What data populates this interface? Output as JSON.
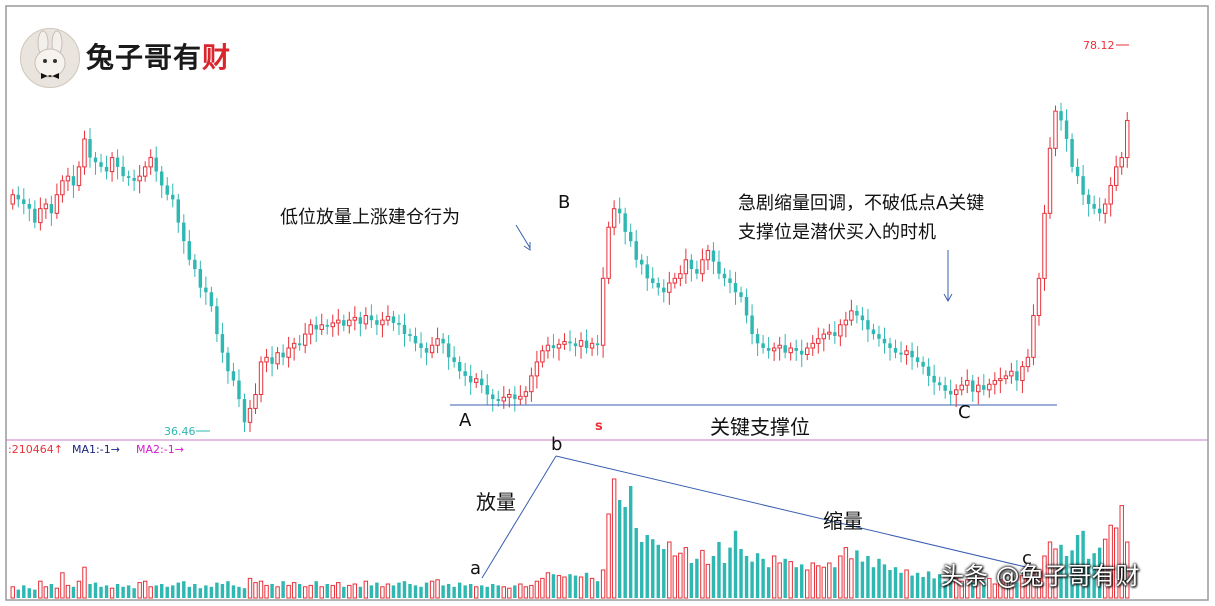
{
  "logo": {
    "text_black": "兔子哥有",
    "text_red": "财"
  },
  "watermark": "头条 @兔子哥有财",
  "colors": {
    "up": "#e8313a",
    "down": "#2fb7b2",
    "line": "#3a5fb0",
    "divider": "#c77fc3",
    "vol_ma1": "#1a237e",
    "vol_ma2": "#d81bd0"
  },
  "chart_data": [
    {
      "type": "candlestick",
      "panel": "price",
      "high_label": "78.12",
      "low_label": "36.46",
      "support_line_label": "关键支撑位",
      "annotations": {
        "left_note": "低位放量上涨建仓行为",
        "right_note_line1": "急剧缩量回调，不破低点A关键",
        "right_note_line2": "支撑位是潜伏买入的时机",
        "points": {
          "A": "A",
          "B": "B",
          "C": "C",
          "s": "s"
        }
      },
      "closes": [
        62,
        61.5,
        61,
        60.5,
        59,
        60.5,
        61,
        60,
        62,
        63.5,
        64,
        63,
        65,
        68,
        66,
        65.5,
        65,
        64.5,
        66,
        65,
        64,
        63.8,
        63.5,
        64,
        65,
        66,
        64.5,
        63,
        62,
        61.5,
        59,
        57,
        55,
        54,
        52,
        51.5,
        50,
        47,
        45,
        43,
        42,
        40,
        37.5,
        39,
        40.5,
        44,
        44.5,
        43.8,
        45,
        44.5,
        45.5,
        46,
        45.8,
        47,
        48,
        47.5,
        48,
        47.8,
        48.2,
        48.5,
        47.9,
        48.5,
        48.8,
        48.1,
        49,
        48.5,
        48,
        48.5,
        48.9,
        48.2,
        48,
        47,
        46.8,
        46,
        45.5,
        45,
        45.8,
        46.5,
        46,
        44.5,
        44,
        43,
        42.5,
        41.8,
        42.2,
        41.5,
        40.5,
        40,
        39.8,
        40.2,
        40.5,
        40,
        40.3,
        40.8,
        42.5,
        44,
        45.2,
        45.8,
        45.5,
        45.9,
        46.2,
        46,
        45.7,
        46.3,
        45.5,
        46,
        45.8,
        53,
        58.5,
        60.5,
        60,
        58,
        57,
        55,
        54.5,
        53,
        52.5,
        52,
        51.5,
        52.5,
        53,
        53.5,
        55,
        54,
        53.5,
        55,
        56,
        54.8,
        53.5,
        53,
        52.5,
        51.5,
        51,
        49,
        47,
        46,
        45.5,
        45.2,
        45.5,
        45.8,
        45,
        45.5,
        45.2,
        44.8,
        45.5,
        46,
        46.5,
        47,
        47.2,
        46.8,
        48,
        48.5,
        49.5,
        49,
        48.5,
        47.5,
        47,
        46.5,
        46,
        45.5,
        45,
        44.8,
        45.2,
        44.5,
        44,
        43.5,
        42.5,
        41.8,
        41.5,
        40.9,
        40.5,
        41,
        41.5,
        42,
        40.8,
        41.5,
        41,
        41.6,
        42,
        42.2,
        42.5,
        43,
        42,
        43.5,
        44.5,
        49,
        53,
        60,
        67,
        71,
        70,
        68,
        65,
        64,
        62,
        61,
        60.5,
        60,
        61,
        63,
        65,
        66,
        70
      ],
      "opens": [
        61,
        62,
        61.5,
        61,
        60.5,
        59,
        60.5,
        61,
        60,
        62,
        63.5,
        64,
        63,
        65,
        68,
        66,
        65.5,
        65,
        64.5,
        66,
        65,
        64,
        63.8,
        63.5,
        64,
        65,
        66,
        64.5,
        63,
        62,
        61.5,
        59,
        57,
        55,
        54,
        52,
        51.5,
        50,
        47,
        45,
        43,
        42,
        40,
        37.5,
        39,
        40.5,
        44,
        44.5,
        43.8,
        45,
        44.5,
        45.5,
        46,
        45.8,
        47,
        48,
        47.5,
        48,
        47.8,
        48.2,
        48.5,
        47.9,
        48.5,
        48.8,
        48.1,
        49,
        48.5,
        48,
        48.5,
        48.9,
        48.2,
        48,
        47,
        46.8,
        46,
        45.5,
        45,
        45.8,
        46.5,
        46,
        44.5,
        44,
        43,
        42.5,
        41.8,
        42.2,
        41.5,
        40.5,
        40,
        39.8,
        40.2,
        40.5,
        40,
        40.3,
        40.8,
        42.5,
        44,
        45.2,
        45.8,
        45.5,
        45.9,
        46.2,
        46,
        45.7,
        46.3,
        45.5,
        46,
        45.8,
        53,
        58.5,
        60.5,
        60,
        58,
        57,
        55,
        54.5,
        53,
        52.5,
        52,
        51.5,
        52.5,
        53,
        53.5,
        55,
        54,
        53.5,
        55,
        56,
        54.8,
        53.5,
        53,
        52.5,
        51.5,
        51,
        49,
        47,
        46,
        45.5,
        45.2,
        45.5,
        45.8,
        45,
        45.5,
        45.2,
        44.8,
        45.5,
        46,
        46.5,
        47,
        47.2,
        46.8,
        48,
        48.5,
        49.5,
        49,
        48.5,
        47.5,
        47,
        46.5,
        46,
        45.5,
        45,
        44.8,
        45.2,
        44.5,
        44,
        43.5,
        42.5,
        41.8,
        41.5,
        40.9,
        40.5,
        41,
        41.5,
        42,
        40.8,
        41.5,
        41,
        41.6,
        42,
        42.2,
        42.5,
        43,
        42,
        43.5,
        44.5,
        49,
        53,
        60,
        67,
        71,
        70,
        68,
        65,
        64,
        62,
        61,
        60.5,
        60,
        61,
        63,
        65,
        66
      ]
    },
    {
      "type": "bar",
      "panel": "volume",
      "legend": {
        "vol": ":210464↑",
        "ma1": "MA1:-1→",
        "ma2": "MA2:-1→"
      },
      "annotations": {
        "a": "a",
        "b": "b",
        "c": "c",
        "expand": "放量",
        "shrink": "缩量"
      },
      "values": [
        8,
        6,
        9,
        7,
        6,
        12,
        8,
        10,
        7,
        18,
        9,
        8,
        12,
        22,
        10,
        11,
        8,
        9,
        7,
        10,
        8,
        9,
        7,
        11,
        12,
        8,
        9,
        10,
        8,
        9,
        11,
        12,
        8,
        10,
        7,
        9,
        8,
        11,
        10,
        12,
        9,
        8,
        7,
        14,
        11,
        12,
        9,
        10,
        8,
        12,
        9,
        11,
        10,
        8,
        9,
        12,
        8,
        10,
        9,
        11,
        8,
        9,
        10,
        8,
        12,
        9,
        11,
        8,
        10,
        9,
        11,
        12,
        10,
        9,
        8,
        11,
        12,
        13,
        9,
        10,
        8,
        11,
        9,
        10,
        8,
        9,
        8,
        10,
        9,
        8,
        7,
        9,
        10,
        8,
        9,
        12,
        14,
        18,
        17,
        16,
        15,
        17,
        16,
        15,
        18,
        14,
        12,
        20,
        60,
        85,
        70,
        65,
        80,
        50,
        40,
        45,
        42,
        38,
        35,
        40,
        30,
        32,
        36,
        25,
        28,
        34,
        24,
        30,
        40,
        25,
        36,
        48,
        35,
        30,
        26,
        32,
        28,
        22,
        30,
        25,
        28,
        26,
        22,
        24,
        20,
        25,
        23,
        22,
        25,
        22,
        30,
        36,
        28,
        34,
        26,
        30,
        22,
        28,
        24,
        20,
        22,
        18,
        20,
        16,
        18,
        15,
        19,
        14,
        17,
        12,
        16,
        14,
        12,
        13,
        11,
        15,
        12,
        14,
        10,
        13,
        12,
        15,
        11,
        16,
        14,
        18,
        20,
        30,
        40,
        35,
        38,
        30,
        34,
        45,
        48,
        28,
        32,
        36,
        42,
        52,
        50,
        66,
        40
      ]
    }
  ]
}
